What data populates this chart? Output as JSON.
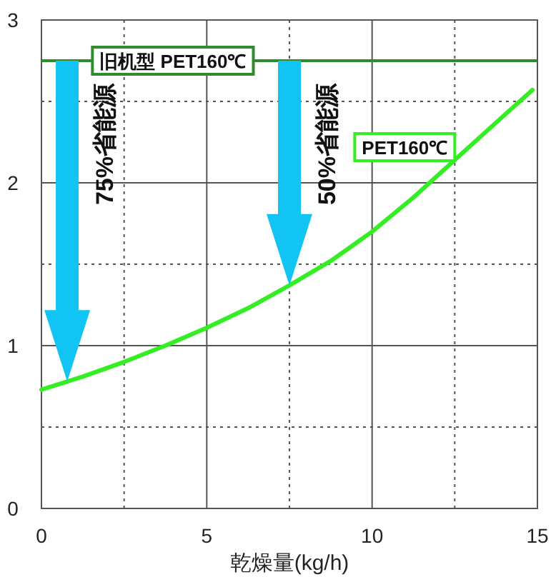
{
  "chart_data": {
    "type": "line",
    "xlabel": "乾燥量(kg/h)",
    "x": [
      0,
      1.25,
      2.5,
      3.75,
      5,
      6.25,
      7.5,
      8.75,
      10,
      11.25,
      12.5,
      13.75,
      14.85
    ],
    "series": [
      {
        "name": "PET160℃",
        "color": "#33ee22",
        "values": [
          0.73,
          0.81,
          0.9,
          1.0,
          1.11,
          1.23,
          1.37,
          1.52,
          1.7,
          1.91,
          2.14,
          2.37,
          2.57
        ]
      }
    ],
    "xlim": [
      0,
      15
    ],
    "ylim": [
      0,
      3
    ],
    "xticks": [
      0,
      5,
      10,
      15
    ],
    "yticks": [
      0,
      1,
      2,
      3
    ],
    "grid": true,
    "ref_lines": [
      {
        "axis": "y",
        "value": 2.75,
        "label": "旧机型 PET160℃",
        "color": "#2e8b2e"
      }
    ],
    "annotations": [
      "75%省能源",
      "50%省能源"
    ]
  }
}
